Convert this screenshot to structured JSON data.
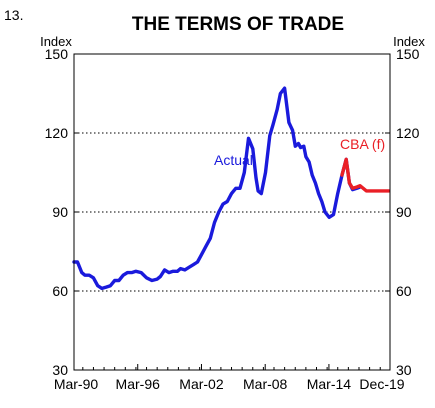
{
  "figure_number": "13.",
  "chart_data": {
    "type": "line",
    "title": "THE TERMS OF TRADE",
    "ylabel_left": "Index",
    "ylabel_right": "Index",
    "ylim": [
      30,
      150
    ],
    "yticks": [
      30,
      60,
      90,
      120,
      150
    ],
    "ytick_labels": [
      "30",
      "60",
      "90",
      "120",
      "150"
    ],
    "x_range": [
      1990.17,
      2019.92
    ],
    "xticks": [
      1990.17,
      1996.17,
      2002.17,
      2008.17,
      2014.17,
      2019.92
    ],
    "xtick_labels": [
      "Mar-90",
      "Mar-96",
      "Mar-02",
      "Mar-08",
      "Mar-14",
      "Dec-19"
    ],
    "grid": "horizontal dotted",
    "series": [
      {
        "name": "Actual",
        "color": "#1a1adc",
        "x": [
          1990.17,
          1990.5,
          1990.9,
          1991.2,
          1991.6,
          1992.0,
          1992.4,
          1992.8,
          1993.2,
          1993.6,
          1994.0,
          1994.4,
          1994.8,
          1995.2,
          1995.6,
          1996.0,
          1996.5,
          1997.0,
          1997.5,
          1998.0,
          1998.3,
          1998.7,
          1999.1,
          1999.5,
          1999.9,
          2000.2,
          2000.6,
          2001.0,
          2001.4,
          2001.8,
          2002.2,
          2002.6,
          2003.0,
          2003.4,
          2003.8,
          2004.2,
          2004.6,
          2005.0,
          2005.4,
          2005.8,
          2006.2,
          2006.6,
          2007.0,
          2007.3,
          2007.5,
          2007.8,
          2008.2,
          2008.6,
          2008.9,
          2009.3,
          2009.6,
          2010.0,
          2010.4,
          2010.75,
          2011.0,
          2011.3,
          2011.5,
          2011.8,
          2012.0,
          2012.3,
          2012.6,
          2012.9,
          2013.2,
          2013.5,
          2013.8,
          2014.2,
          2014.6,
          2015.0,
          2015.4,
          2015.8,
          2016.1,
          2016.4,
          2016.8,
          2017.1
        ],
        "values": [
          71,
          71,
          67,
          66,
          66,
          65,
          62,
          61,
          61.5,
          62,
          64,
          64,
          66,
          67,
          67,
          67.5,
          67,
          65,
          64,
          64.5,
          65.5,
          68,
          67,
          67.5,
          67.5,
          68.5,
          68,
          69,
          70,
          71,
          74,
          77,
          80,
          86,
          90,
          93,
          94,
          97,
          99,
          99,
          105,
          118,
          114,
          103,
          98,
          97,
          105,
          119,
          123,
          129,
          135,
          137,
          124,
          121,
          115,
          116,
          114.5,
          115,
          111,
          109,
          104,
          101,
          97,
          94,
          90,
          88,
          89,
          97,
          104,
          110,
          101,
          98.5,
          99,
          99.5
        ]
      },
      {
        "name": "CBA (f)",
        "color": "#ea1f26",
        "x": [
          2015.4,
          2015.8,
          2016.1,
          2016.4,
          2016.8,
          2017.1,
          2017.4,
          2017.7,
          2018.0,
          2018.3,
          2018.7,
          2019.0,
          2019.3,
          2019.6,
          2019.8
        ],
        "values": [
          104,
          110,
          101,
          99,
          99.5,
          100,
          99,
          98,
          98,
          98,
          98,
          98,
          98,
          98,
          98
        ]
      }
    ],
    "annotations": [
      "Actual",
      "CBA (f)"
    ]
  }
}
